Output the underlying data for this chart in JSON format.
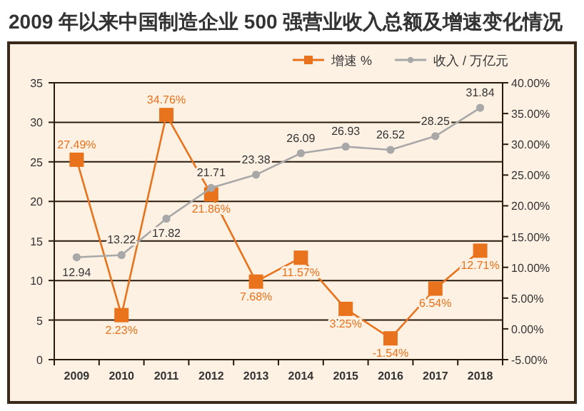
{
  "chart_data": {
    "type": "line",
    "title": "2009 年以来中国制造企业 500 强营业收入总额及增速变化情况",
    "categories": [
      "2009",
      "2010",
      "2011",
      "2012",
      "2013",
      "2014",
      "2015",
      "2016",
      "2017",
      "2018"
    ],
    "series": [
      {
        "name": "增速 %",
        "color": "#e8731c",
        "axis": "y2",
        "marker": "square",
        "values": [
          27.49,
          2.23,
          34.76,
          21.86,
          7.68,
          11.57,
          3.25,
          -1.54,
          6.54,
          12.71
        ],
        "value_labels": [
          "27.49%",
          "2.23%",
          "34.76%",
          "21.86%",
          "7.68%",
          "11.57%",
          "3.25%",
          "-1.54%",
          "6.54%",
          "12.71%"
        ]
      },
      {
        "name": "收入 / 万亿元",
        "color": "#a8a8a8",
        "marker": "circle",
        "values": [
          12.94,
          13.22,
          17.82,
          21.71,
          23.38,
          26.09,
          26.93,
          26.52,
          28.25,
          31.84
        ],
        "value_labels": [
          "12.94",
          "13.22",
          "17.82",
          "21.71",
          "23.38",
          "26.09",
          "26.93",
          "26.52",
          "28.25",
          "31.84"
        ]
      }
    ],
    "ylim": [
      0,
      35
    ],
    "yticks": [
      0,
      5,
      10,
      15,
      20,
      25,
      30,
      35
    ],
    "y2lim": [
      -5,
      40
    ],
    "y2ticks": [
      {
        "value": -5,
        "label": "-5.00%"
      },
      {
        "value": 0,
        "label": "0.00%"
      },
      {
        "value": 5,
        "label": "5.00%"
      },
      {
        "value": 10,
        "label": "10.00%"
      },
      {
        "value": 15,
        "label": "15.00%"
      },
      {
        "value": 20,
        "label": "20.00%"
      },
      {
        "value": 25,
        "label": "25.00%"
      },
      {
        "value": 30,
        "label": "30.00%"
      },
      {
        "value": 35,
        "label": "35.00%"
      },
      {
        "value": 40,
        "label": "40.00%"
      }
    ],
    "grid": "y",
    "legend": "top right"
  }
}
